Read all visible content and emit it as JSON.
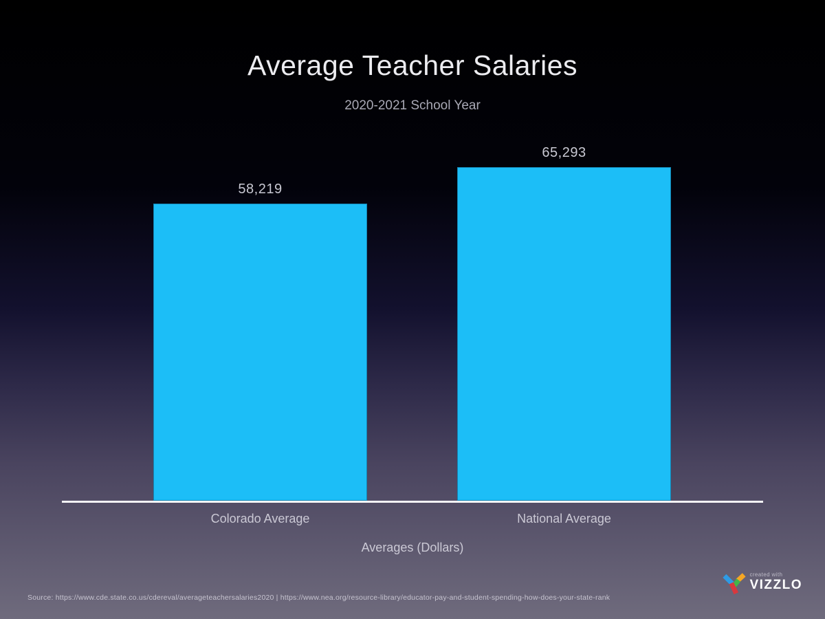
{
  "chart_data": {
    "type": "bar",
    "title": "Average Teacher Salaries",
    "subtitle": "2020-2021 School Year",
    "categories": [
      "Colorado Average",
      "National Average"
    ],
    "values": [
      58219,
      65293
    ],
    "value_labels": [
      "58,219",
      "65,293"
    ],
    "xlabel": "Averages (Dollars)",
    "ylabel": "",
    "ylim": [
      0,
      65293
    ],
    "bar_color": "#1CBEF7",
    "grid": false,
    "legend": "none",
    "background_gradient": [
      "#000000",
      "#6F6B7D"
    ]
  },
  "footer": {
    "source": "Source: https://www.cde.state.co.us/cdereval/averageteachersalaries2020 | https://www.nea.org/resource-library/educator-pay-and-student-spending-how-does-your-state-rank",
    "logo": {
      "tagline": "created with",
      "brand": "VIZZLO",
      "mark_colors": {
        "blue": "#2E9BE5",
        "orange": "#F5A623",
        "green": "#43B649",
        "red": "#D8383E"
      }
    }
  }
}
